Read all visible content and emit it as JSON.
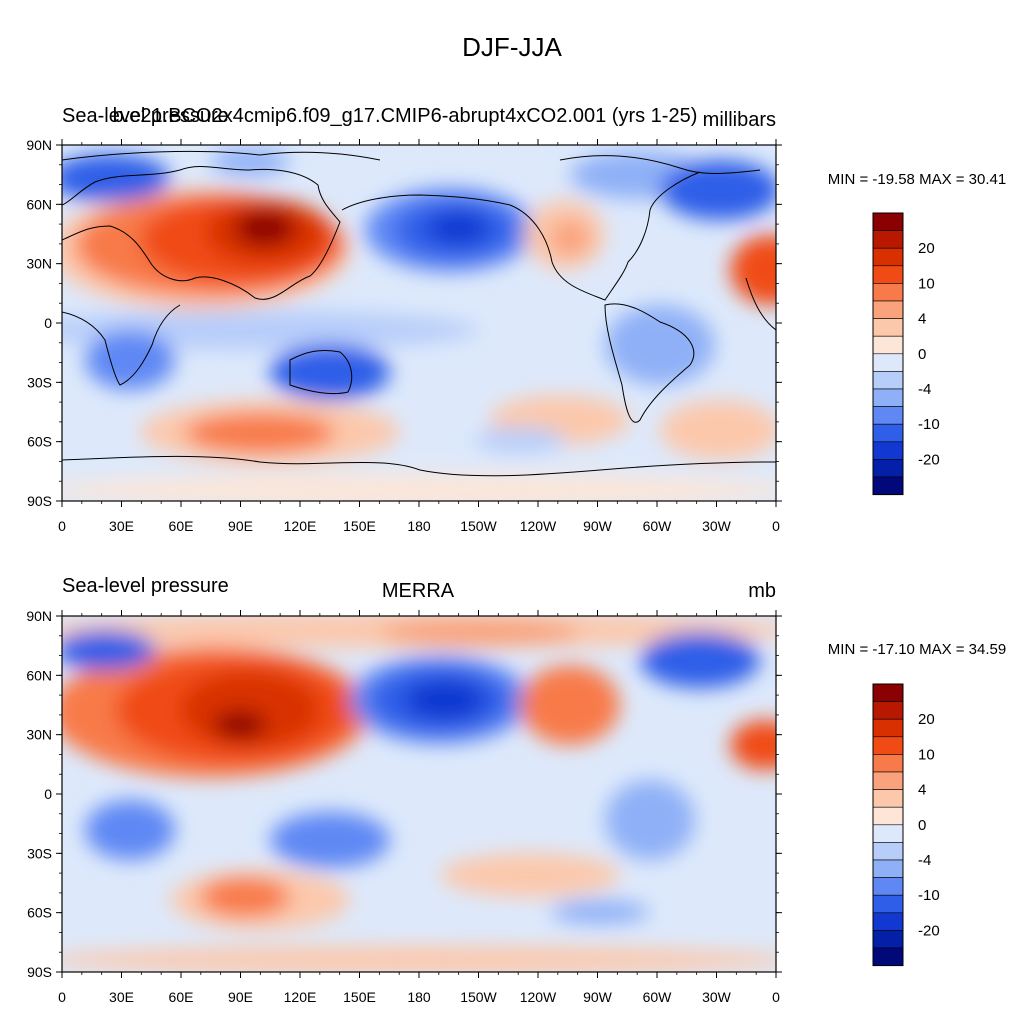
{
  "figure": {
    "title": "DJF-JJA"
  },
  "axes": {
    "lon_ticks": [
      "0",
      "30E",
      "60E",
      "90E",
      "120E",
      "150E",
      "180",
      "150W",
      "120W",
      "90W",
      "60W",
      "30W",
      "0"
    ],
    "lat_ticks": [
      "90N",
      "60N",
      "30N",
      "0",
      "30S",
      "60S",
      "90S"
    ]
  },
  "colorbar": {
    "labels": [
      "20",
      "10",
      "4",
      "0",
      "-4",
      "-10",
      "-20"
    ],
    "colors": [
      "#8b0000",
      "#b81800",
      "#d83000",
      "#f04b14",
      "#f87a4a",
      "#f9a27b",
      "#fcc8ab",
      "#fde6d7",
      "#dde9fb",
      "#b7cdfa",
      "#8fb0f7",
      "#5f88f4",
      "#2f5fe8",
      "#1138d0",
      "#0520a8",
      "#00087a"
    ]
  },
  "panels": [
    {
      "left_title": "Sea-level pressure",
      "center_title": "b.e21.BCO2x4cmip6.f09_g17.CMIP6-abrupt4xCO2.001 (yrs 1-25)",
      "right_title": "millibars",
      "stats": "MIN = -19.58 MAX =  30.41",
      "min": -19.58,
      "max": 30.41
    },
    {
      "left_title": "Sea-level pressure",
      "center_title": "MERRA",
      "right_title": "mb",
      "stats": "MIN = -17.10 MAX =  34.59",
      "min": -17.1,
      "max": 34.59
    }
  ]
}
